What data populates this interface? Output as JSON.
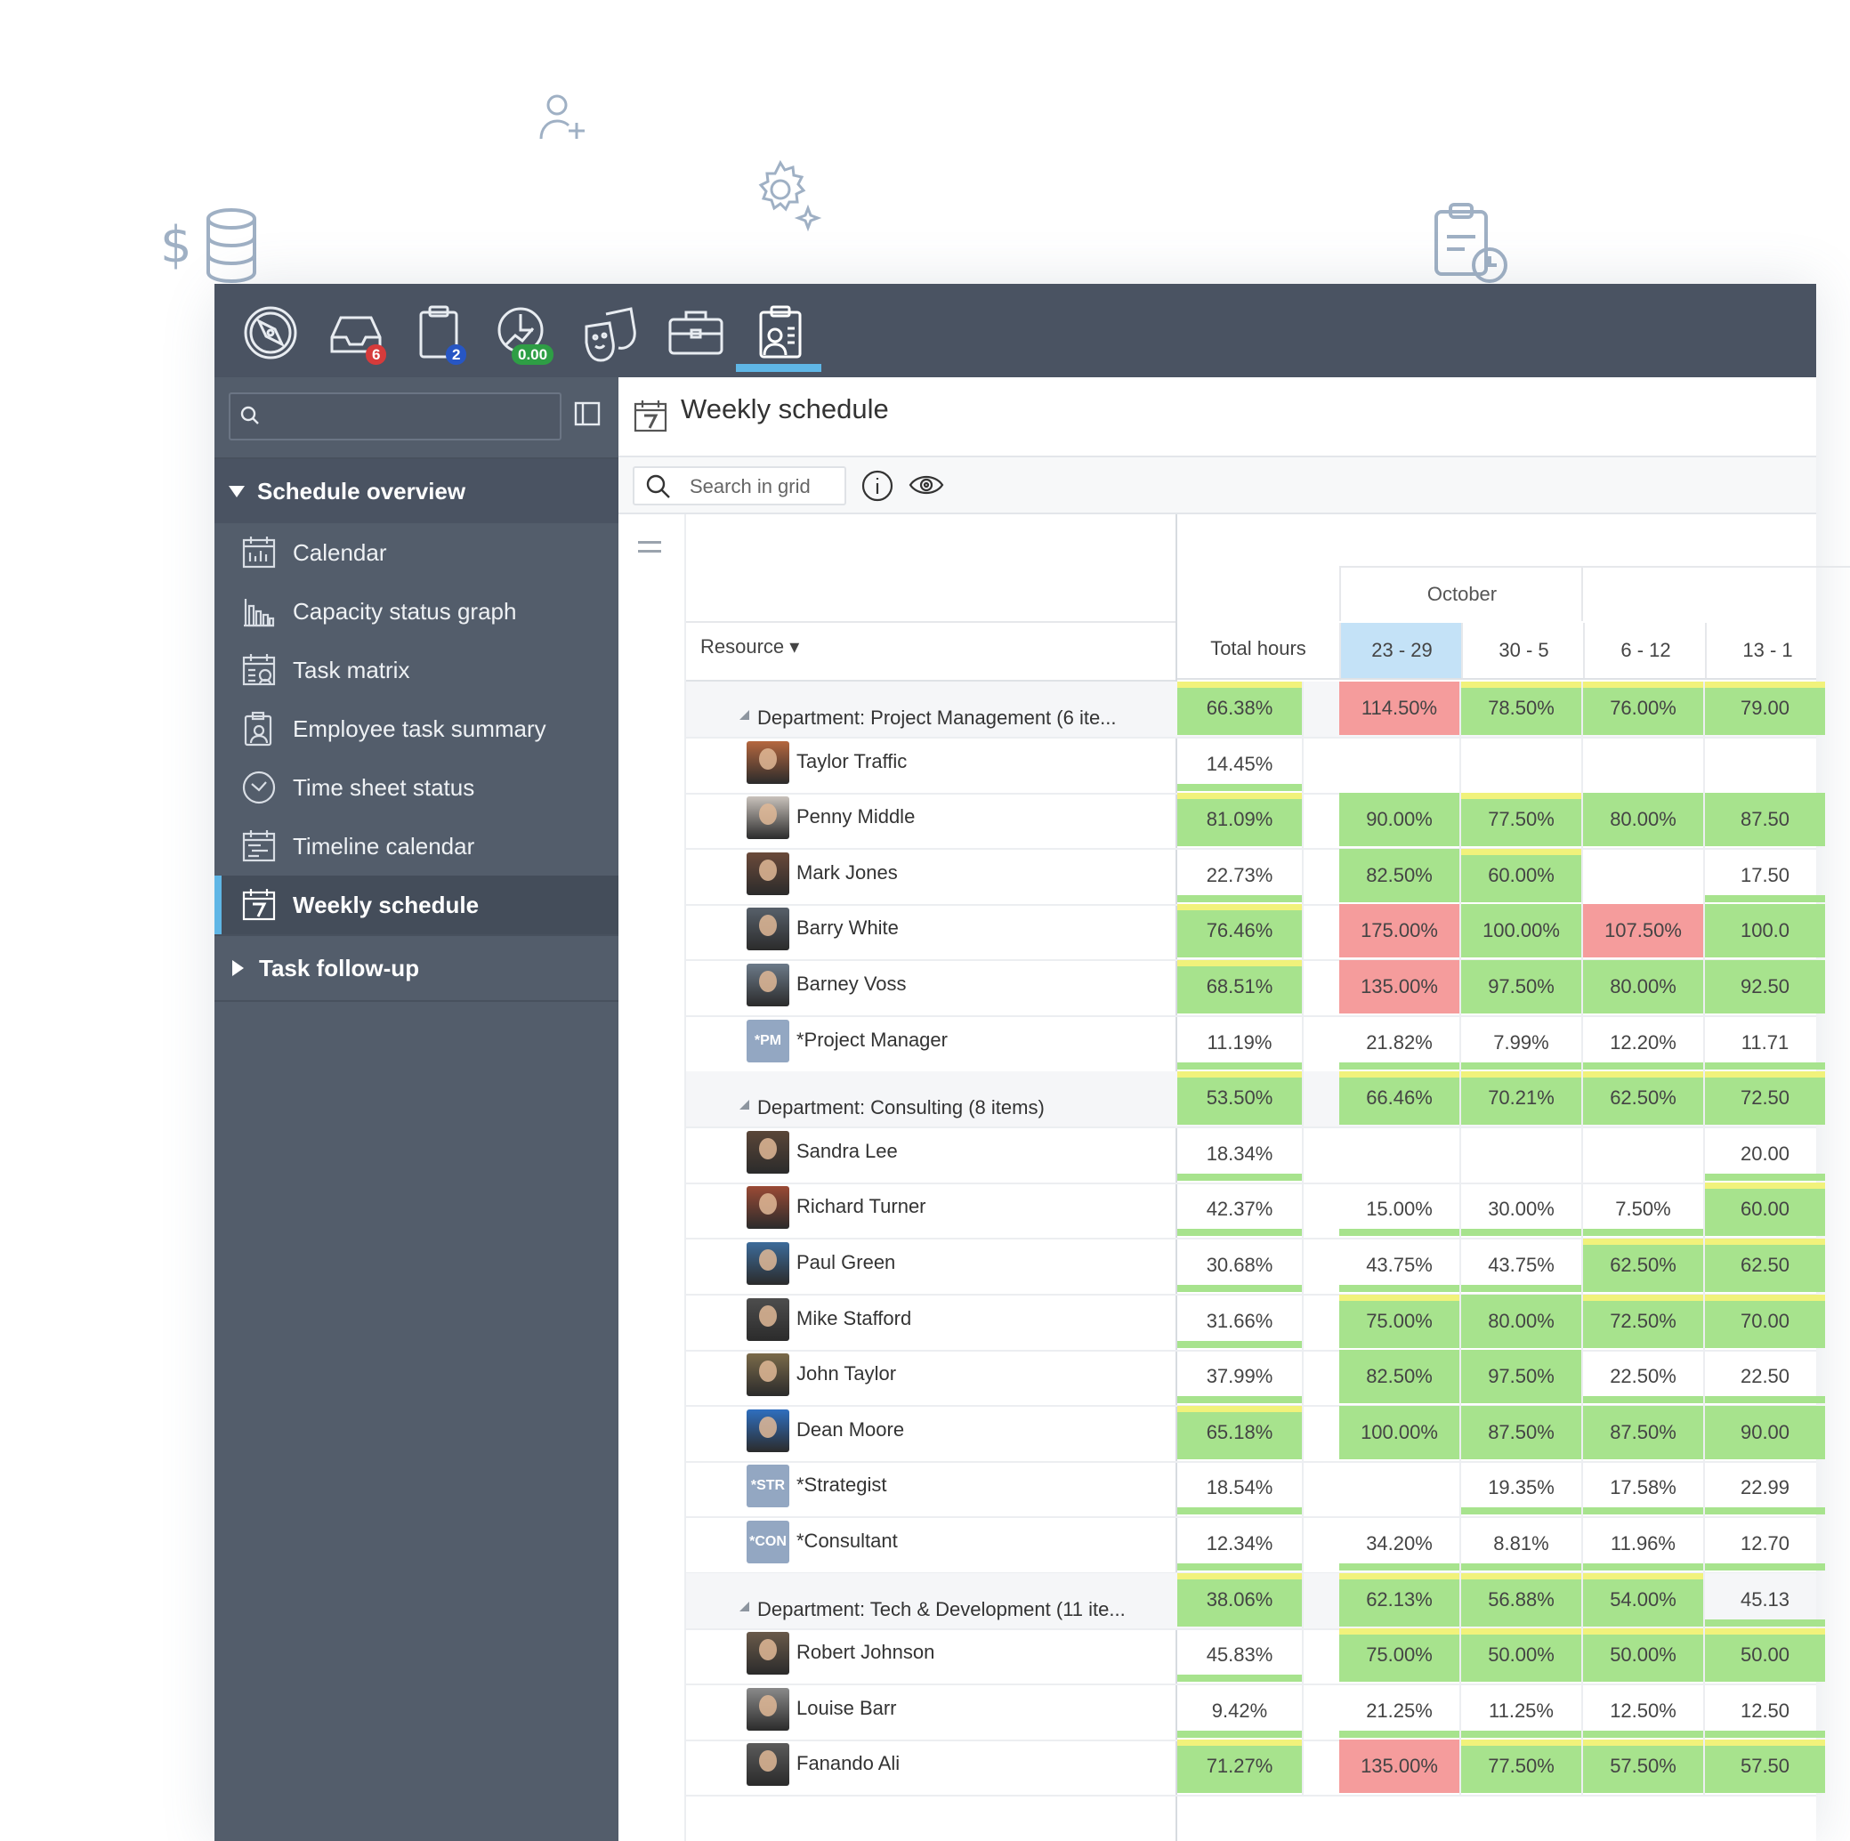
{
  "topbar": {
    "icons": [
      {
        "name": "compass-icon"
      },
      {
        "name": "inbox-icon",
        "badge": "6",
        "badge_color": "#d63b3b"
      },
      {
        "name": "clipboard-icon",
        "badge": "2",
        "badge_color": "#2756c4"
      },
      {
        "name": "time-report-icon",
        "badge": "0.00",
        "badge_color": "#2e9e45"
      },
      {
        "name": "theater-masks-icon"
      },
      {
        "name": "briefcase-icon"
      },
      {
        "name": "resource-planning-icon",
        "active": true
      }
    ]
  },
  "sidebar": {
    "search_placeholder": "",
    "groups": [
      {
        "label": "Schedule overview",
        "expanded": true
      },
      {
        "label": "Task follow-up",
        "expanded": false
      }
    ],
    "items": [
      {
        "label": "Calendar",
        "icon": "calendar-icon"
      },
      {
        "label": "Capacity status graph",
        "icon": "bar-chart-icon"
      },
      {
        "label": "Task matrix",
        "icon": "task-matrix-icon"
      },
      {
        "label": "Employee task summary",
        "icon": "employee-task-icon"
      },
      {
        "label": "Time sheet status",
        "icon": "clock-icon"
      },
      {
        "label": "Timeline calendar",
        "icon": "timeline-icon"
      },
      {
        "label": "Weekly schedule",
        "icon": "calendar-7-icon",
        "active": true
      }
    ]
  },
  "main": {
    "title": "Weekly schedule",
    "search_placeholder": "Search in grid"
  },
  "grid": {
    "resource_header": "Resource ▾",
    "total_header": "Total hours",
    "month": "October",
    "weeks": [
      "23 - 29",
      "30 - 5",
      "6 - 12",
      "13 - 1"
    ],
    "rows": [
      {
        "type": "dept",
        "name": "Department: Project Management (6 ite...",
        "total": "66.38%",
        "vals": [
          "114.50%",
          "78.50%",
          "76.00%",
          "79.00"
        ]
      },
      {
        "type": "person",
        "name": "Taylor Traffic",
        "avatar": "#b5673f",
        "total": "14.45%",
        "vals": [
          "",
          "",
          "",
          ""
        ]
      },
      {
        "type": "person",
        "name": "Penny Middle",
        "avatar": "#c9c2bb",
        "total": "81.09%",
        "vals": [
          "90.00%",
          "77.50%",
          "80.00%",
          "87.50"
        ]
      },
      {
        "type": "person",
        "name": "Mark Jones",
        "avatar": "#6b4a3a",
        "total": "22.73%",
        "vals": [
          "82.50%",
          "60.00%",
          "",
          "17.50"
        ]
      },
      {
        "type": "person",
        "name": "Barry White",
        "avatar": "#57606a",
        "total": "76.46%",
        "vals": [
          "175.00%",
          "100.00%",
          "107.50%",
          "100.0"
        ]
      },
      {
        "type": "person",
        "name": "Barney Voss",
        "avatar": "#6c7a89",
        "total": "68.51%",
        "vals": [
          "135.00%",
          "97.50%",
          "80.00%",
          "92.50"
        ]
      },
      {
        "type": "role",
        "name": "*Project Manager",
        "abbr": "*PM",
        "total": "11.19%",
        "vals": [
          "21.82%",
          "7.99%",
          "12.20%",
          "11.71"
        ]
      },
      {
        "type": "dept",
        "name": "Department: Consulting (8 items)",
        "total": "53.50%",
        "vals": [
          "66.46%",
          "70.21%",
          "62.50%",
          "72.50"
        ]
      },
      {
        "type": "person",
        "name": "Sandra Lee",
        "avatar": "#5a4638",
        "total": "18.34%",
        "vals": [
          "",
          "",
          "",
          "20.00"
        ]
      },
      {
        "type": "person",
        "name": "Richard Turner",
        "avatar": "#9a4a35",
        "total": "42.37%",
        "vals": [
          "15.00%",
          "30.00%",
          "7.50%",
          "60.00"
        ]
      },
      {
        "type": "person",
        "name": "Paul Green",
        "avatar": "#3d6c9a",
        "total": "30.68%",
        "vals": [
          "43.75%",
          "43.75%",
          "62.50%",
          "62.50"
        ]
      },
      {
        "type": "person",
        "name": "Mike Stafford",
        "avatar": "#4d4d4d",
        "total": "31.66%",
        "vals": [
          "75.00%",
          "80.00%",
          "72.50%",
          "70.00"
        ]
      },
      {
        "type": "person",
        "name": "John Taylor",
        "avatar": "#7a6a4a",
        "total": "37.99%",
        "vals": [
          "82.50%",
          "97.50%",
          "22.50%",
          "22.50"
        ]
      },
      {
        "type": "person",
        "name": "Dean Moore",
        "avatar": "#2f6fbf",
        "total": "65.18%",
        "vals": [
          "100.00%",
          "87.50%",
          "87.50%",
          "90.00"
        ]
      },
      {
        "type": "role",
        "name": "*Strategist",
        "abbr": "*STR",
        "total": "18.54%",
        "vals": [
          "",
          "19.35%",
          "17.58%",
          "22.99"
        ]
      },
      {
        "type": "role",
        "name": "*Consultant",
        "abbr": "*CON",
        "total": "12.34%",
        "vals": [
          "34.20%",
          "8.81%",
          "11.96%",
          "12.70"
        ]
      },
      {
        "type": "dept",
        "name": "Department: Tech & Development (11 ite...",
        "total": "38.06%",
        "vals": [
          "62.13%",
          "56.88%",
          "54.00%",
          "45.13"
        ]
      },
      {
        "type": "person",
        "name": "Robert Johnson",
        "avatar": "#6a5a4a",
        "total": "45.83%",
        "vals": [
          "75.00%",
          "50.00%",
          "50.00%",
          "50.00"
        ]
      },
      {
        "type": "person",
        "name": "Louise Barr",
        "avatar": "#8a8a8a",
        "total": "9.42%",
        "vals": [
          "21.25%",
          "11.25%",
          "12.50%",
          "12.50"
        ]
      },
      {
        "type": "person",
        "name": "Fanando Ali",
        "avatar": "#5b5b5b",
        "total": "71.27%",
        "vals": [
          "135.00%",
          "77.50%",
          "57.50%",
          "57.50"
        ]
      }
    ]
  },
  "colors": {
    "green": "#a7e38d",
    "red": "#f59c9c",
    "yellow": "#ecf49a",
    "accent": "#5fb6e6",
    "topbar": "#4a5362",
    "sidebar": "#535d6b"
  }
}
